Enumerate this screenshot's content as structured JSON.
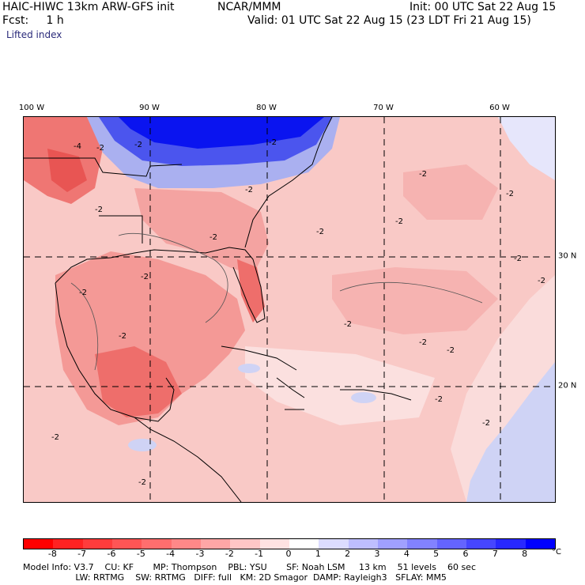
{
  "header": {
    "title": "HAIC-HIWC 13km ARW-GFS init",
    "org": "NCAR/MMM",
    "init": "Init: 00 UTC Sat 22 Aug 15",
    "fcst": "Fcst:     1 h",
    "valid": "Valid: 01 UTC Sat 22 Aug 15 (23 LDT Fri 21 Aug 15)",
    "field": "Lifted index"
  },
  "map": {
    "lon_labels": [
      "100 W",
      "90 W",
      "80 W",
      "70 W",
      "60 W"
    ],
    "lat_labels": [
      "30 N",
      "20 N"
    ],
    "contour_labels": [
      "-4",
      "-2",
      "-2",
      "-2",
      "-2",
      "-2",
      "-2",
      "-2",
      "-2",
      "-2",
      "-2",
      "-2",
      "-2",
      "-2",
      "-2",
      "-2",
      "-2",
      "-2",
      "-2",
      "-2",
      "-2",
      "-2",
      "-2"
    ]
  },
  "colorbar": {
    "ticks": [
      "-8",
      "-7",
      "-6",
      "-5",
      "-4",
      "-3",
      "-2",
      "-1",
      "0",
      "1",
      "2",
      "3",
      "4",
      "5",
      "6",
      "7",
      "8"
    ],
    "unit": "°C",
    "colors": [
      "#ff0000",
      "#ff2222",
      "#ff3c3c",
      "#ff5555",
      "#ff6e6e",
      "#ff8888",
      "#ffa6a6",
      "#ffc6c6",
      "#ffe2e2",
      "#ffffff",
      "#dcdcff",
      "#bebeff",
      "#a0a0ff",
      "#8282ff",
      "#6464ff",
      "#4646ff",
      "#2828ff",
      "#0000ff"
    ]
  },
  "model_info": {
    "line1": "Model Info: V3.7    CU: KF       MP: Thompson    PBL: YSU       SF: Noah LSM     13 km    51 levels    60 sec",
    "line2": "                   LW: RRTMG    SW: RRTMG   DIFF: full   KM: 2D Smagor  DAMP: Rayleigh3   SFLAY: MM5"
  }
}
